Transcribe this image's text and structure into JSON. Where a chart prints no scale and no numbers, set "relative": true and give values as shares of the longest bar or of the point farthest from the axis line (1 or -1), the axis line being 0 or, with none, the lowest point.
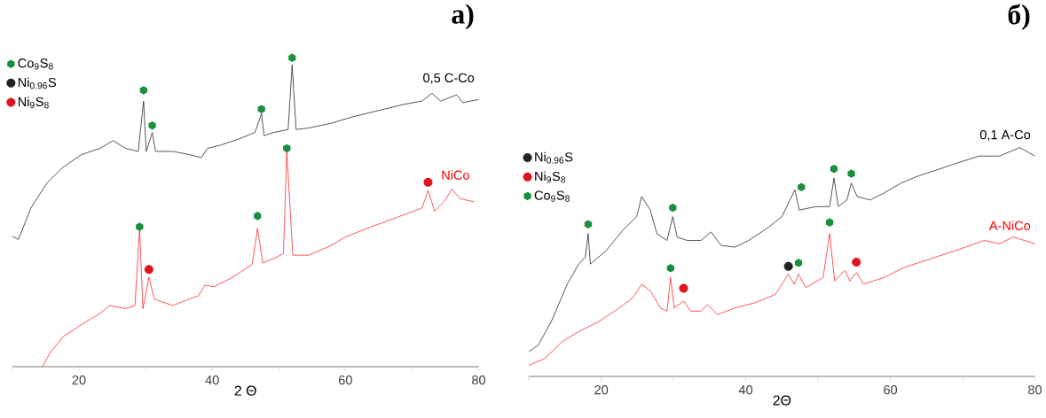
{
  "chart_data": [
    {
      "type": "line",
      "relative": true,
      "title": "a)",
      "xlabel": "2 Θ",
      "xlim": [
        10,
        80
      ],
      "xticks": [
        {
          "value": 10,
          "label": null
        },
        20,
        {
          "value": 30,
          "label": null
        },
        40,
        {
          "value": 50,
          "label": null
        },
        60,
        {
          "value": 70,
          "label": null
        },
        80
      ],
      "legend": "top left",
      "series": [
        {
          "name": "0,5 C-Co",
          "color": "#000000",
          "x": [
            10.0,
            10.9,
            12.8,
            15.2,
            17.6,
            20.4,
            23.2,
            25.1,
            27.0,
            28.9,
            29.7,
            30.1,
            31.0,
            31.5,
            34.1,
            36.5,
            38.4,
            39.3,
            41.2,
            44.1,
            46.4,
            47.4,
            47.8,
            49.2,
            51.4,
            52.0,
            52.6,
            54.5,
            57.8,
            61.1,
            64.9,
            68.7,
            71.5,
            73.0,
            74.3,
            76.7,
            77.6,
            80.0
          ],
          "values": [
            0.422,
            0.412,
            0.514,
            0.595,
            0.646,
            0.687,
            0.707,
            0.732,
            0.707,
            0.697,
            0.86,
            0.697,
            0.758,
            0.697,
            0.697,
            0.687,
            0.677,
            0.707,
            0.717,
            0.738,
            0.758,
            0.819,
            0.748,
            0.758,
            0.768,
            0.977,
            0.768,
            0.773,
            0.788,
            0.809,
            0.829,
            0.849,
            0.86,
            0.885,
            0.86,
            0.88,
            0.855,
            0.865
          ]
        },
        {
          "name": "NiCo",
          "color": "#ff0000",
          "x": [
            14.5,
            15.7,
            17.6,
            20.4,
            23.2,
            24.6,
            27.0,
            28.4,
            29.1,
            29.6,
            30.5,
            31.3,
            34.1,
            36.5,
            37.9,
            38.9,
            40.3,
            43.1,
            46.0,
            46.8,
            47.6,
            49.3,
            50.7,
            51.2,
            52.1,
            54.5,
            57.8,
            60.2,
            63.9,
            67.7,
            71.5,
            72.4,
            73.4,
            74.8,
            76.0,
            77.2,
            79.3
          ],
          "values": [
            0.0,
            0.046,
            0.097,
            0.137,
            0.173,
            0.198,
            0.188,
            0.198,
            0.448,
            0.188,
            0.29,
            0.219,
            0.198,
            0.219,
            0.229,
            0.264,
            0.259,
            0.29,
            0.331,
            0.448,
            0.336,
            0.351,
            0.366,
            0.697,
            0.361,
            0.361,
            0.392,
            0.422,
            0.453,
            0.483,
            0.514,
            0.57,
            0.504,
            0.534,
            0.575,
            0.544,
            0.534
          ]
        },
        {
          "type": "scatter",
          "name": "Co$_{9}$S$_{8}$",
          "color": "#1a8f3c",
          "x": [
            29.1,
            29.7,
            31.0,
            46.8,
            47.4,
            51.2,
            52.0
          ],
          "values": [
            0.453,
            0.895,
            0.781,
            0.488,
            0.834,
            0.707,
            1.0
          ]
        },
        {
          "type": "scatter",
          "name": "Ni$_{0.96}$S",
          "color": "#222222",
          "marker": "circle"
        },
        {
          "type": "scatter",
          "name": "Ni$_{9}$S$_{8}$",
          "color": "#e0141e",
          "marker": "circle",
          "x": [
            30.5,
            72.4
          ],
          "values": [
            0.315,
            0.597
          ]
        }
      ]
    },
    {
      "type": "line",
      "relative": true,
      "title": "б)",
      "xlabel": "2Θ",
      "xlim": [
        10,
        80
      ],
      "xticks": [
        {
          "value": 10,
          "label": null
        },
        20,
        {
          "value": 30,
          "label": null
        },
        40,
        {
          "value": 50,
          "label": null
        },
        60,
        {
          "value": 70,
          "label": null
        },
        80
      ],
      "legend": "left",
      "series": [
        {
          "name": "0,1 A-Co",
          "color": "#000000",
          "x": [
            10.0,
            11.3,
            13.1,
            15.3,
            16.9,
            17.8,
            18.2,
            18.5,
            20.7,
            23.0,
            24.9,
            25.6,
            26.8,
            27.7,
            29.1,
            29.9,
            30.5,
            31.9,
            33.8,
            35.2,
            36.6,
            38.5,
            40.4,
            43.2,
            45.0,
            46.8,
            47.4,
            49.7,
            51.6,
            52.2,
            52.8,
            54.0,
            54.6,
            55.4,
            57.2,
            59.1,
            61.5,
            63.8,
            66.6,
            69.4,
            72.3,
            75.1,
            77.9,
            80.0
          ],
          "values": [
            0.108,
            0.137,
            0.24,
            0.403,
            0.491,
            0.521,
            0.624,
            0.491,
            0.55,
            0.639,
            0.698,
            0.786,
            0.727,
            0.624,
            0.594,
            0.698,
            0.609,
            0.594,
            0.594,
            0.631,
            0.572,
            0.565,
            0.594,
            0.653,
            0.698,
            0.816,
            0.727,
            0.742,
            0.742,
            0.867,
            0.742,
            0.771,
            0.845,
            0.786,
            0.771,
            0.801,
            0.845,
            0.875,
            0.904,
            0.934,
            0.963,
            0.963,
            1.0,
            0.963
          ]
        },
        {
          "name": "A-NiCo",
          "color": "#ff0000",
          "x": [
            10.0,
            12.2,
            14.6,
            16.9,
            19.7,
            22.5,
            24.4,
            25.6,
            26.8,
            28.2,
            29.1,
            29.6,
            30.1,
            31.4,
            32.4,
            33.8,
            34.7,
            36.1,
            38.5,
            41.3,
            44.1,
            45.9,
            46.7,
            47.3,
            48.3,
            50.7,
            51.6,
            52.3,
            53.7,
            54.4,
            55.3,
            56.3,
            59.1,
            61.9,
            64.8,
            67.6,
            70.4,
            73.0,
            75.1,
            77.0,
            80.0
          ],
          "values": [
            0.049,
            0.078,
            0.152,
            0.196,
            0.24,
            0.299,
            0.344,
            0.403,
            0.373,
            0.299,
            0.285,
            0.432,
            0.299,
            0.329,
            0.285,
            0.285,
            0.314,
            0.27,
            0.299,
            0.322,
            0.358,
            0.447,
            0.403,
            0.447,
            0.388,
            0.432,
            0.624,
            0.417,
            0.462,
            0.417,
            0.454,
            0.403,
            0.432,
            0.476,
            0.506,
            0.535,
            0.565,
            0.594,
            0.58,
            0.609,
            0.58
          ]
        },
        {
          "type": "scatter",
          "name": "Ni$_{0.96}$S",
          "color": "#222222",
          "marker": "circle",
          "x": [
            45.9
          ],
          "values": [
            0.481
          ]
        },
        {
          "type": "scatter",
          "name": "Ni$_{9}$S$_{8}$",
          "color": "#e0141e",
          "marker": "circle",
          "x": [
            31.4,
            55.3
          ],
          "values": [
            0.385,
            0.499
          ]
        },
        {
          "type": "scatter",
          "name": "Co$_{9}$S$_{8}$",
          "color": "#1a8f3c",
          "x": [
            18.2,
            29.6,
            29.9,
            47.3,
            47.7,
            51.6,
            52.2,
            54.6
          ],
          "values": [
            0.665,
            0.473,
            0.737,
            0.496,
            0.827,
            0.673,
            0.907,
            0.886
          ]
        }
      ]
    }
  ]
}
